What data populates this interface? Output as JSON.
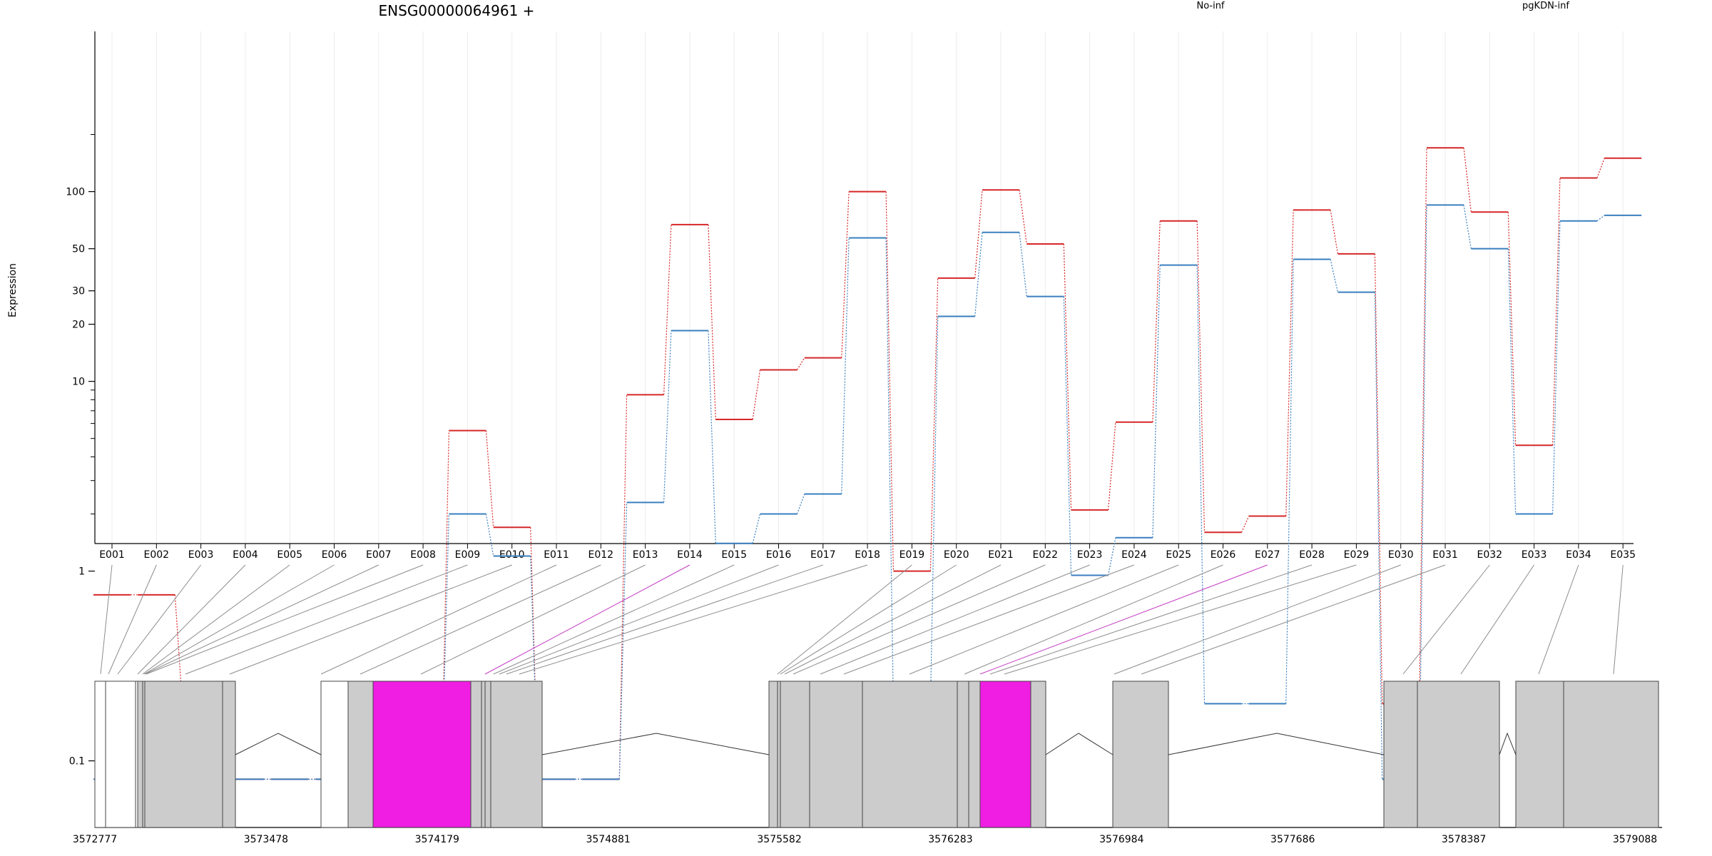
{
  "chart_data": {
    "type": "line",
    "title": "ENSG00000064961 +",
    "ylabel": "Expression",
    "yscale": "log",
    "yticks": [
      0.1,
      1,
      10,
      20,
      30,
      50,
      100
    ],
    "ylim": [
      0.08,
      210
    ],
    "grid": true,
    "legend_placement": "top",
    "categories": [
      "E001",
      "E002",
      "E003",
      "E004",
      "E005",
      "E006",
      "E007",
      "E008",
      "E009",
      "E010",
      "E011",
      "E012",
      "E013",
      "E014",
      "E015",
      "E016",
      "E017",
      "E018",
      "E019",
      "E020",
      "E021",
      "E022",
      "E023",
      "E024",
      "E025",
      "E026",
      "E027",
      "E028",
      "E029",
      "E030",
      "E031",
      "E032",
      "E033",
      "E034",
      "E035"
    ],
    "series": [
      {
        "name": "No-inf",
        "color": "#d62728",
        "values": [
          0.75,
          0.75,
          0.2,
          0.08,
          0.08,
          0.08,
          0.08,
          0.08,
          5.5,
          1.7,
          0.08,
          0.08,
          8.5,
          67,
          6.3,
          11.5,
          13.3,
          100,
          1,
          35,
          102,
          53,
          2.1,
          6.1,
          70,
          1.6,
          1.95,
          80,
          47,
          0.2,
          170,
          78,
          4.6,
          118,
          150
        ]
      },
      {
        "name": "pgKDN-inf",
        "color": "#3a7fbf",
        "values": [
          0.08,
          0.08,
          0.08,
          0.08,
          0.08,
          0.08,
          0.08,
          0.08,
          2.0,
          1.2,
          0.08,
          0.08,
          2.3,
          18.5,
          1.4,
          2.0,
          2.55,
          57,
          0.2,
          22,
          61,
          28,
          0.95,
          1.5,
          41,
          0.2,
          0.2,
          44,
          29.5,
          0.08,
          85,
          50,
          2.0,
          70,
          75
        ]
      }
    ],
    "gene_model": {
      "coordinate_ticks": [
        "3572777",
        "3573478",
        "3574179",
        "3574881",
        "3575582",
        "3576283",
        "3576984",
        "3577686",
        "3578387",
        "3579088"
      ],
      "highlight_color": "#f01de3",
      "exon_color": "#cccccc"
    }
  }
}
